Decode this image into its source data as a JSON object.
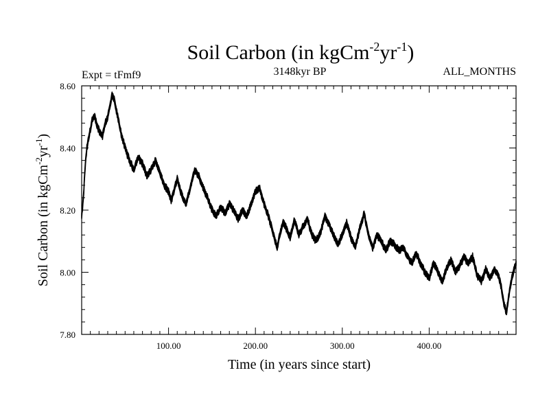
{
  "chart_data": {
    "type": "line",
    "title": "Soil Carbon (in kgCm",
    "title_sup1": "-2",
    "title_mid": "yr",
    "title_sup2": "-1",
    "title_end": ")",
    "subtitle_left": "Expt = tFmf9",
    "subtitle_center": "3148kyr BP",
    "subtitle_right": "ALL_MONTHS",
    "xlabel": "Time (in years since start)",
    "ylabel": "Soil Carbon (in kgCm",
    "ylabel_sup1": "-2",
    "ylabel_mid": "yr",
    "ylabel_sup2": "-1",
    "ylabel_end": ")",
    "xlim": [
      0,
      500
    ],
    "ylim": [
      7.8,
      8.6
    ],
    "xticks": [
      100,
      200,
      300,
      400
    ],
    "xtick_labels": [
      "100.00",
      "200.00",
      "300.00",
      "400.00"
    ],
    "yticks": [
      7.8,
      8.0,
      8.2,
      8.4,
      8.6
    ],
    "ytick_labels": [
      "7.80",
      "8.00",
      "8.20",
      "8.40",
      "8.60"
    ],
    "grid": false,
    "line_color": "#000000",
    "band_width": 0.012,
    "series": [
      {
        "name": "Soil Carbon",
        "x": [
          0,
          2,
          4,
          6,
          8,
          10,
          12,
          15,
          18,
          21,
          24,
          27,
          30,
          33,
          35,
          37,
          40,
          43,
          46,
          50,
          55,
          60,
          65,
          70,
          75,
          80,
          85,
          90,
          95,
          100,
          103,
          106,
          110,
          115,
          120,
          125,
          130,
          135,
          140,
          145,
          150,
          155,
          160,
          165,
          170,
          175,
          180,
          185,
          190,
          195,
          200,
          205,
          210,
          215,
          220,
          225,
          228,
          232,
          236,
          240,
          245,
          250,
          255,
          260,
          265,
          270,
          275,
          280,
          285,
          290,
          295,
          300,
          305,
          310,
          315,
          320,
          325,
          330,
          335,
          340,
          345,
          350,
          355,
          360,
          365,
          370,
          375,
          380,
          385,
          390,
          395,
          400,
          405,
          410,
          415,
          420,
          425,
          430,
          435,
          440,
          445,
          450,
          455,
          460,
          465,
          470,
          475,
          480,
          483,
          486,
          489,
          492,
          495,
          498,
          500
        ],
        "y": [
          8.18,
          8.24,
          8.34,
          8.4,
          8.43,
          8.46,
          8.49,
          8.5,
          8.47,
          8.45,
          8.44,
          8.48,
          8.5,
          8.54,
          8.57,
          8.56,
          8.52,
          8.48,
          8.44,
          8.4,
          8.36,
          8.33,
          8.37,
          8.35,
          8.31,
          8.33,
          8.36,
          8.32,
          8.28,
          8.26,
          8.23,
          8.26,
          8.3,
          8.25,
          8.22,
          8.27,
          8.33,
          8.31,
          8.27,
          8.24,
          8.2,
          8.18,
          8.21,
          8.19,
          8.22,
          8.2,
          8.17,
          8.2,
          8.18,
          8.22,
          8.26,
          8.27,
          8.22,
          8.18,
          8.13,
          8.08,
          8.12,
          8.16,
          8.14,
          8.11,
          8.17,
          8.12,
          8.15,
          8.17,
          8.12,
          8.1,
          8.13,
          8.18,
          8.15,
          8.12,
          8.09,
          8.12,
          8.16,
          8.11,
          8.08,
          8.14,
          8.19,
          8.12,
          8.08,
          8.12,
          8.1,
          8.07,
          8.1,
          8.09,
          8.07,
          8.08,
          8.05,
          8.03,
          8.06,
          8.03,
          8.0,
          7.98,
          8.03,
          8.0,
          7.97,
          8.01,
          8.04,
          8.0,
          8.02,
          8.05,
          8.03,
          8.05,
          7.99,
          7.97,
          8.01,
          7.98,
          8.01,
          7.99,
          7.95,
          7.9,
          7.87,
          7.93,
          7.98,
          8.01,
          8.03
        ]
      }
    ]
  }
}
